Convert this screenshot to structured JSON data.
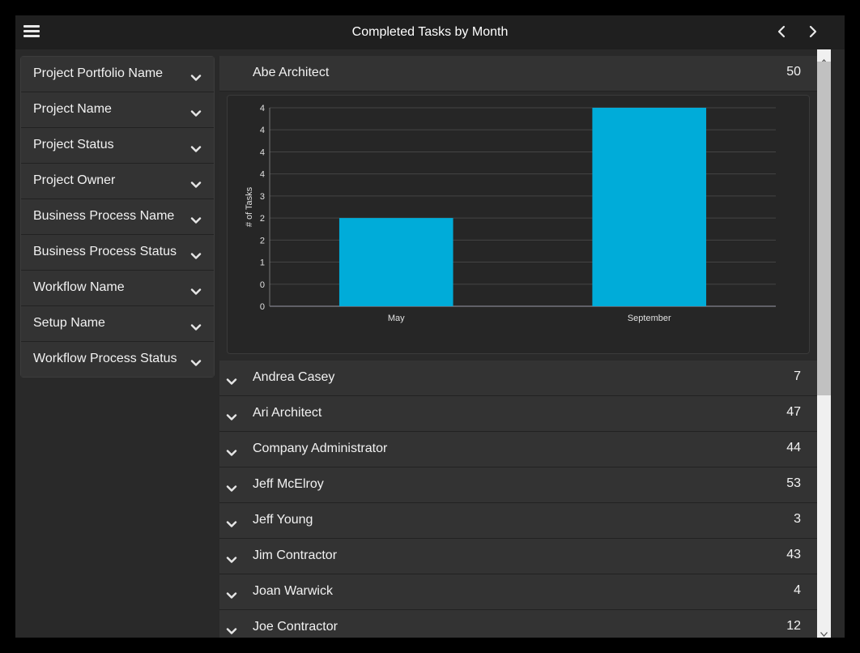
{
  "header": {
    "title": "Completed Tasks by Month"
  },
  "icons": {
    "menu": "hamburger-menu-icon",
    "prev": "chevron-left-icon",
    "next": "chevron-right-icon",
    "expand": "chevron-down-icon"
  },
  "colors": {
    "bar": "#00acd9",
    "header_bg": "#1f1f1f",
    "panel_bg": "#292929"
  },
  "filters": [
    {
      "label": "Project Portfolio Name"
    },
    {
      "label": "Project Name"
    },
    {
      "label": "Project Status"
    },
    {
      "label": "Project Owner"
    },
    {
      "label": "Business Process Name"
    },
    {
      "label": "Business Process Status"
    },
    {
      "label": "Workflow Name"
    },
    {
      "label": "Setup Name"
    },
    {
      "label": "Workflow Process Status"
    }
  ],
  "groups": [
    {
      "name": "Abe Architect",
      "count": "50",
      "expanded": true
    },
    {
      "name": "Andrea Casey",
      "count": "7"
    },
    {
      "name": "Ari Architect",
      "count": "47"
    },
    {
      "name": "Company Administrator",
      "count": "44"
    },
    {
      "name": "Jeff McElroy",
      "count": "53"
    },
    {
      "name": "Jeff Young",
      "count": "3"
    },
    {
      "name": "Jim Contractor",
      "count": "43"
    },
    {
      "name": "Joan Warwick",
      "count": "4"
    },
    {
      "name": "Joe Contractor",
      "count": "12"
    }
  ],
  "chart_data": {
    "type": "bar",
    "categories": [
      "May",
      "September"
    ],
    "values": [
      2,
      4.5
    ],
    "xlabel": "",
    "ylabel": "# of Tasks",
    "ylim": [
      0,
      4.5
    ],
    "ytick_labels": [
      "0",
      "0",
      "1",
      "2",
      "2",
      "3",
      "4",
      "4",
      "4",
      "4"
    ],
    "grid": true
  }
}
